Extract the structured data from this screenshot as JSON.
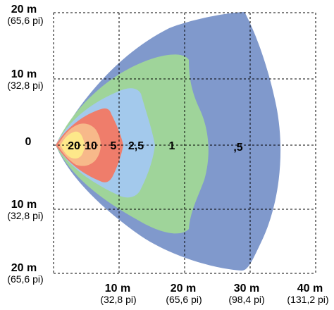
{
  "y_labels": [
    {
      "main": "20 m",
      "sub": "(65,6 pi)"
    },
    {
      "main": "10 m",
      "sub": "(32,8 pi)"
    },
    {
      "main": "0",
      "sub": ""
    },
    {
      "main": "10 m",
      "sub": "(32,8 pi)"
    },
    {
      "main": "20 m",
      "sub": "(65,6 pi)"
    }
  ],
  "x_labels": [
    {
      "main": "10 m",
      "sub": "(32,8 pi)"
    },
    {
      "main": "20 m",
      "sub": "(65,6 pi)"
    },
    {
      "main": "30 m",
      "sub": "(98,4 pi)"
    },
    {
      "main": "40 m",
      "sub": "(131,2 pi)"
    }
  ],
  "zones": [
    {
      "label": ",5",
      "color": "#8099cc"
    },
    {
      "label": "1",
      "color": "#9fd49a"
    },
    {
      "label": "2,5",
      "color": "#a3c9ec"
    },
    {
      "label": "5",
      "color": "#ef7d6b"
    },
    {
      "label": "10",
      "color": "#f7b98a"
    },
    {
      "label": "20",
      "color": "#fde88a"
    }
  ]
}
